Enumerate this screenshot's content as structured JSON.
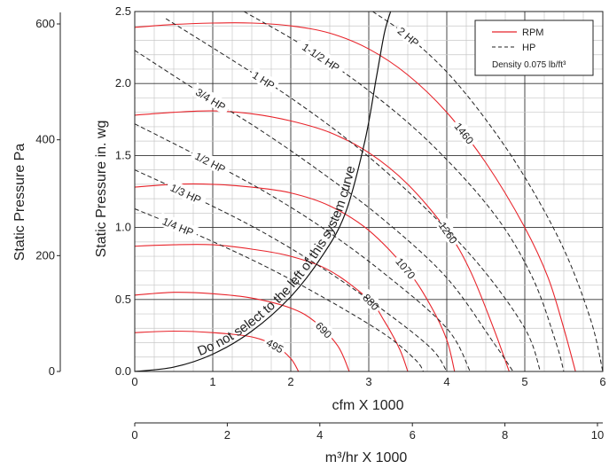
{
  "chart_data": {
    "type": "line",
    "xlabel": "cfm X 1000",
    "ylabel": "Static Pressure in. wg",
    "xlim": [
      0,
      6
    ],
    "ylim": [
      0,
      2.5
    ],
    "x_ticks": [
      "0",
      "1",
      "2",
      "3",
      "4",
      "5",
      "6"
    ],
    "y_ticks": [
      "0.0",
      "0.5",
      "1.0",
      "1.5",
      "2.0",
      "2.5"
    ],
    "grid": true,
    "pa_axis": {
      "label": "Static Pressure Pa",
      "ticks": [
        "0",
        "200",
        "400",
        "600"
      ]
    },
    "m3_axis": {
      "label": "m³/hr X 1000",
      "ticks": [
        "0",
        "2",
        "4",
        "6",
        "8",
        "10"
      ]
    },
    "legend": {
      "placement": "top-right",
      "rpm_label": "RPM",
      "hp_label": "HP",
      "density_text": "Density 0.075 lb/ft³",
      "rpm_color": "#e8242b",
      "hp_color": "#222222"
    },
    "rpm_curves": [
      {
        "name": "495",
        "points": [
          [
            0,
            0.27
          ],
          [
            0.5,
            0.28
          ],
          [
            1.0,
            0.27
          ],
          [
            1.5,
            0.24
          ],
          [
            1.8,
            0.18
          ],
          [
            2.0,
            0.09
          ],
          [
            2.1,
            0.0
          ]
        ]
      },
      {
        "name": "690",
        "points": [
          [
            0,
            0.53
          ],
          [
            0.5,
            0.55
          ],
          [
            1.0,
            0.54
          ],
          [
            1.5,
            0.51
          ],
          [
            2.0,
            0.44
          ],
          [
            2.3,
            0.35
          ],
          [
            2.6,
            0.18
          ],
          [
            2.75,
            0.0
          ]
        ]
      },
      {
        "name": "880",
        "points": [
          [
            0,
            0.87
          ],
          [
            0.5,
            0.88
          ],
          [
            1.0,
            0.88
          ],
          [
            1.5,
            0.85
          ],
          [
            2.0,
            0.8
          ],
          [
            2.5,
            0.7
          ],
          [
            3.0,
            0.5
          ],
          [
            3.2,
            0.35
          ],
          [
            3.4,
            0.15
          ],
          [
            3.5,
            0.0
          ]
        ]
      },
      {
        "name": "1070",
        "points": [
          [
            0,
            1.28
          ],
          [
            0.5,
            1.3
          ],
          [
            1.0,
            1.3
          ],
          [
            1.5,
            1.28
          ],
          [
            2.0,
            1.24
          ],
          [
            2.5,
            1.15
          ],
          [
            3.0,
            0.98
          ],
          [
            3.5,
            0.7
          ],
          [
            3.8,
            0.45
          ],
          [
            4.0,
            0.22
          ],
          [
            4.1,
            0.0
          ]
        ]
      },
      {
        "name": "1260",
        "points": [
          [
            0,
            1.78
          ],
          [
            0.5,
            1.8
          ],
          [
            1.0,
            1.81
          ],
          [
            1.5,
            1.79
          ],
          [
            2.0,
            1.74
          ],
          [
            2.5,
            1.66
          ],
          [
            3.0,
            1.52
          ],
          [
            3.5,
            1.3
          ],
          [
            4.0,
            0.98
          ],
          [
            4.3,
            0.7
          ],
          [
            4.6,
            0.3
          ],
          [
            4.8,
            0.0
          ]
        ]
      },
      {
        "name": "1460",
        "points": [
          [
            0,
            2.39
          ],
          [
            0.5,
            2.41
          ],
          [
            1.0,
            2.42
          ],
          [
            1.5,
            2.42
          ],
          [
            2.0,
            2.4
          ],
          [
            2.5,
            2.35
          ],
          [
            3.0,
            2.24
          ],
          [
            3.5,
            2.06
          ],
          [
            4.0,
            1.8
          ],
          [
            4.5,
            1.45
          ],
          [
            5.0,
            1.0
          ],
          [
            5.3,
            0.65
          ],
          [
            5.5,
            0.3
          ],
          [
            5.65,
            0.0
          ]
        ]
      }
    ],
    "hp_lines": [
      {
        "name": "1/4 HP",
        "points": [
          [
            0,
            1.13
          ],
          [
            0.8,
            0.95
          ],
          [
            1.6,
            0.75
          ],
          [
            2.4,
            0.52
          ],
          [
            3.2,
            0.26
          ],
          [
            3.6,
            0.08
          ],
          [
            3.7,
            0.0
          ]
        ]
      },
      {
        "name": "1/3 HP",
        "points": [
          [
            0,
            1.4
          ],
          [
            0.8,
            1.2
          ],
          [
            1.6,
            0.98
          ],
          [
            2.4,
            0.72
          ],
          [
            3.2,
            0.42
          ],
          [
            3.8,
            0.16
          ],
          [
            4.0,
            0.0
          ]
        ]
      },
      {
        "name": "1/2 HP",
        "points": [
          [
            0,
            1.72
          ],
          [
            0.8,
            1.5
          ],
          [
            1.6,
            1.27
          ],
          [
            2.4,
            1.0
          ],
          [
            3.2,
            0.68
          ],
          [
            4.0,
            0.3
          ],
          [
            4.3,
            0.0
          ]
        ]
      },
      {
        "name": "3/4 HP",
        "points": [
          [
            0,
            2.23
          ],
          [
            0.8,
            1.95
          ],
          [
            1.6,
            1.68
          ],
          [
            2.4,
            1.38
          ],
          [
            3.2,
            1.05
          ],
          [
            4.0,
            0.65
          ],
          [
            4.6,
            0.2
          ],
          [
            4.85,
            0.0
          ]
        ]
      },
      {
        "name": "1 HP",
        "points": [
          [
            0.4,
            2.45
          ],
          [
            1.2,
            2.18
          ],
          [
            2.0,
            1.9
          ],
          [
            2.8,
            1.58
          ],
          [
            3.6,
            1.2
          ],
          [
            4.4,
            0.75
          ],
          [
            5.0,
            0.3
          ],
          [
            5.2,
            0.0
          ]
        ]
      },
      {
        "name": "1-1/2 HP",
        "points": [
          [
            1.4,
            2.5
          ],
          [
            2.2,
            2.25
          ],
          [
            3.0,
            1.95
          ],
          [
            3.8,
            1.58
          ],
          [
            4.6,
            1.1
          ],
          [
            5.1,
            0.65
          ],
          [
            5.4,
            0.2
          ],
          [
            5.5,
            0.0
          ]
        ]
      },
      {
        "name": "2 HP",
        "points": [
          [
            3.05,
            2.5
          ],
          [
            3.5,
            2.33
          ],
          [
            4.0,
            2.08
          ],
          [
            4.5,
            1.75
          ],
          [
            5.0,
            1.35
          ],
          [
            5.5,
            0.85
          ],
          [
            5.85,
            0.35
          ],
          [
            6.0,
            0.0
          ]
        ]
      }
    ],
    "system_curve": {
      "label": "Do not select to the left of this system curve",
      "points": [
        [
          0,
          0.0
        ],
        [
          0.5,
          0.03
        ],
        [
          1.0,
          0.12
        ],
        [
          1.5,
          0.28
        ],
        [
          2.0,
          0.52
        ],
        [
          2.4,
          0.8
        ],
        [
          2.7,
          1.1
        ],
        [
          2.95,
          1.6
        ],
        [
          3.1,
          2.05
        ],
        [
          3.2,
          2.35
        ],
        [
          3.28,
          2.5
        ]
      ]
    }
  }
}
